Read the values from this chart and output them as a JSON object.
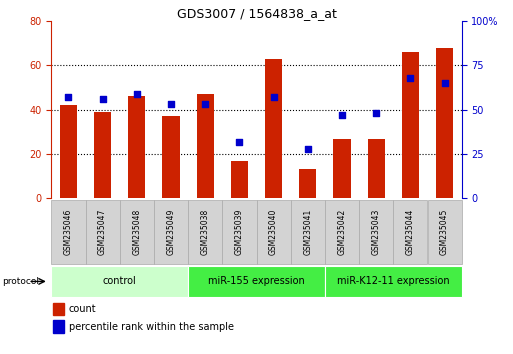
{
  "title": "GDS3007 / 1564838_a_at",
  "samples": [
    "GSM235046",
    "GSM235047",
    "GSM235048",
    "GSM235049",
    "GSM235038",
    "GSM235039",
    "GSM235040",
    "GSM235041",
    "GSM235042",
    "GSM235043",
    "GSM235044",
    "GSM235045"
  ],
  "counts": [
    42,
    39,
    46,
    37,
    47,
    17,
    63,
    13,
    27,
    27,
    66,
    68
  ],
  "percentile_ranks": [
    57,
    56,
    59,
    53,
    53,
    32,
    57,
    28,
    47,
    48,
    68,
    65
  ],
  "bar_color": "#cc2200",
  "dot_color": "#0000cc",
  "ylim_left": [
    0,
    80
  ],
  "ylim_right": [
    0,
    100
  ],
  "yticks_left": [
    0,
    20,
    40,
    60,
    80
  ],
  "yticks_right": [
    0,
    25,
    50,
    75,
    100
  ],
  "ytick_labels_right": [
    "0",
    "25",
    "50",
    "75",
    "100%"
  ],
  "group_configs": [
    {
      "label": "control",
      "start": 0,
      "end": 4,
      "color": "#ccffcc"
    },
    {
      "label": "miR-155 expression",
      "start": 4,
      "end": 8,
      "color": "#44ee44"
    },
    {
      "label": "miR-K12-11 expression",
      "start": 8,
      "end": 12,
      "color": "#44ee44"
    }
  ],
  "protocol_label": "protocol",
  "legend_count_label": "count",
  "legend_pct_label": "percentile rank within the sample",
  "bar_width": 0.5,
  "title_fontsize": 9,
  "tick_fontsize": 7,
  "sample_fontsize": 5.5,
  "group_fontsize": 7,
  "legend_fontsize": 7
}
